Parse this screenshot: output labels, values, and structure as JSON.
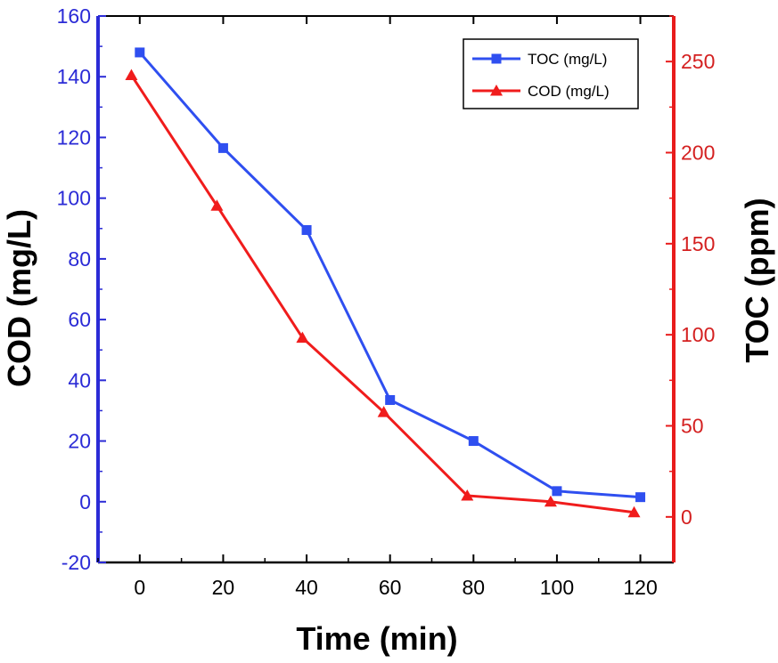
{
  "colors": {
    "left_axis": "#2b2bd6",
    "right_axis": "#e81c1c",
    "series_blue": "#2f4ff0",
    "series_red": "#f01c1c"
  },
  "chart_data": {
    "type": "line",
    "xlabel": "Time (min)",
    "ylabel_left": "COD (mg/L)",
    "ylabel_right": "TOC (ppm)",
    "xlim": [
      -10,
      128
    ],
    "ylim_left": [
      -20,
      160
    ],
    "ylim_right": [
      -25,
      275
    ],
    "x_ticks": [
      0,
      20,
      40,
      60,
      80,
      100,
      120
    ],
    "y_left_ticks": [
      -20,
      0,
      20,
      40,
      60,
      80,
      100,
      120,
      140,
      160
    ],
    "y_right_ticks": [
      0,
      50,
      100,
      150,
      200,
      250
    ],
    "legend_position": "top-right",
    "grid": false,
    "series": [
      {
        "name": "TOC (mg/L)",
        "color_key": "series_blue",
        "marker": "square",
        "axis": "left",
        "x": [
          0,
          20,
          40,
          60,
          80,
          100,
          120
        ],
        "y": [
          148,
          116.5,
          89.5,
          33.5,
          20,
          3.5,
          1.5
        ]
      },
      {
        "name": "COD (mg/L)",
        "color_key": "series_red",
        "marker": "triangle",
        "axis": "left",
        "x": [
          -2,
          18.5,
          39,
          58.5,
          78.5,
          98.5,
          118.5
        ],
        "y": [
          140.5,
          97.5,
          54,
          29.5,
          2,
          0,
          -3.5
        ]
      }
    ]
  }
}
